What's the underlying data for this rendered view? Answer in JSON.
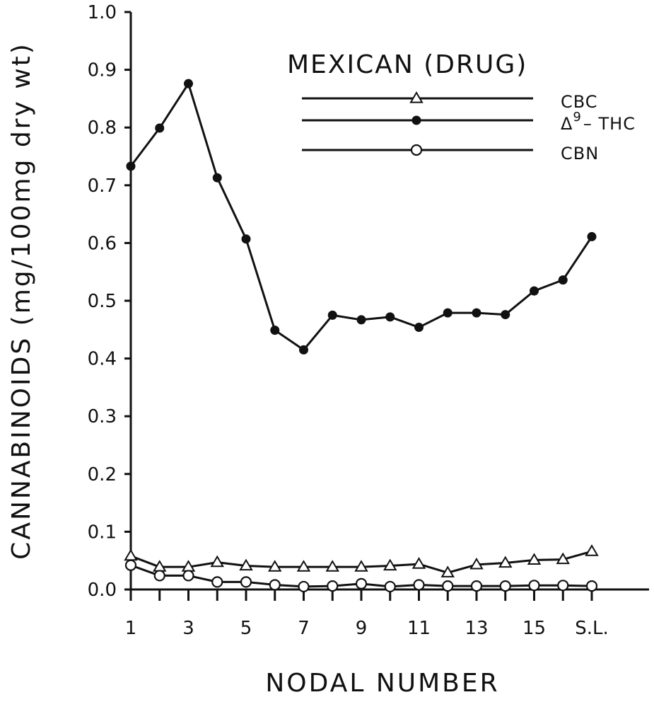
{
  "chart_data": {
    "type": "line",
    "title": "MEXICAN (DRUG)",
    "xlabel": "NODAL NUMBER",
    "ylabel": "CANNABINOIDS (mg/100mg dry wt)",
    "x_categories": [
      "1",
      "2",
      "3",
      "4",
      "5",
      "6",
      "7",
      "8",
      "9",
      "10",
      "11",
      "12",
      "13",
      "14",
      "15",
      "16",
      "S.L."
    ],
    "x_tick_labels": [
      "1",
      "3",
      "5",
      "7",
      "9",
      "11",
      "13",
      "15",
      "S.L."
    ],
    "ylim": [
      0,
      1.0
    ],
    "y_ticks": [
      "0.0",
      "0.1",
      "0.2",
      "0.3",
      "0.4",
      "0.5",
      "0.6",
      "0.7",
      "0.8",
      "0.9",
      "1.0"
    ],
    "legend_position": "top-right",
    "grid": false,
    "series": [
      {
        "name": "CBC",
        "marker": "open-triangle",
        "values": [
          0.058,
          0.039,
          0.039,
          0.047,
          0.041,
          0.039,
          0.039,
          0.039,
          0.039,
          0.041,
          0.044,
          0.029,
          0.043,
          0.046,
          0.051,
          0.052,
          0.066
        ]
      },
      {
        "name": "Δ9 – THC",
        "name_main": "Δ",
        "name_sup": "9",
        "name_rest": "– THC",
        "marker": "filled-circle",
        "values": [
          0.733,
          0.799,
          0.876,
          0.713,
          0.607,
          0.449,
          0.415,
          0.475,
          0.467,
          0.472,
          0.454,
          0.479,
          0.479,
          0.476,
          0.517,
          0.536,
          0.611
        ]
      },
      {
        "name": "CBN",
        "marker": "open-circle",
        "values": [
          0.042,
          0.024,
          0.024,
          0.013,
          0.013,
          0.008,
          0.005,
          0.006,
          0.01,
          0.005,
          0.008,
          0.006,
          0.006,
          0.006,
          0.007,
          0.007,
          0.006
        ]
      }
    ]
  }
}
